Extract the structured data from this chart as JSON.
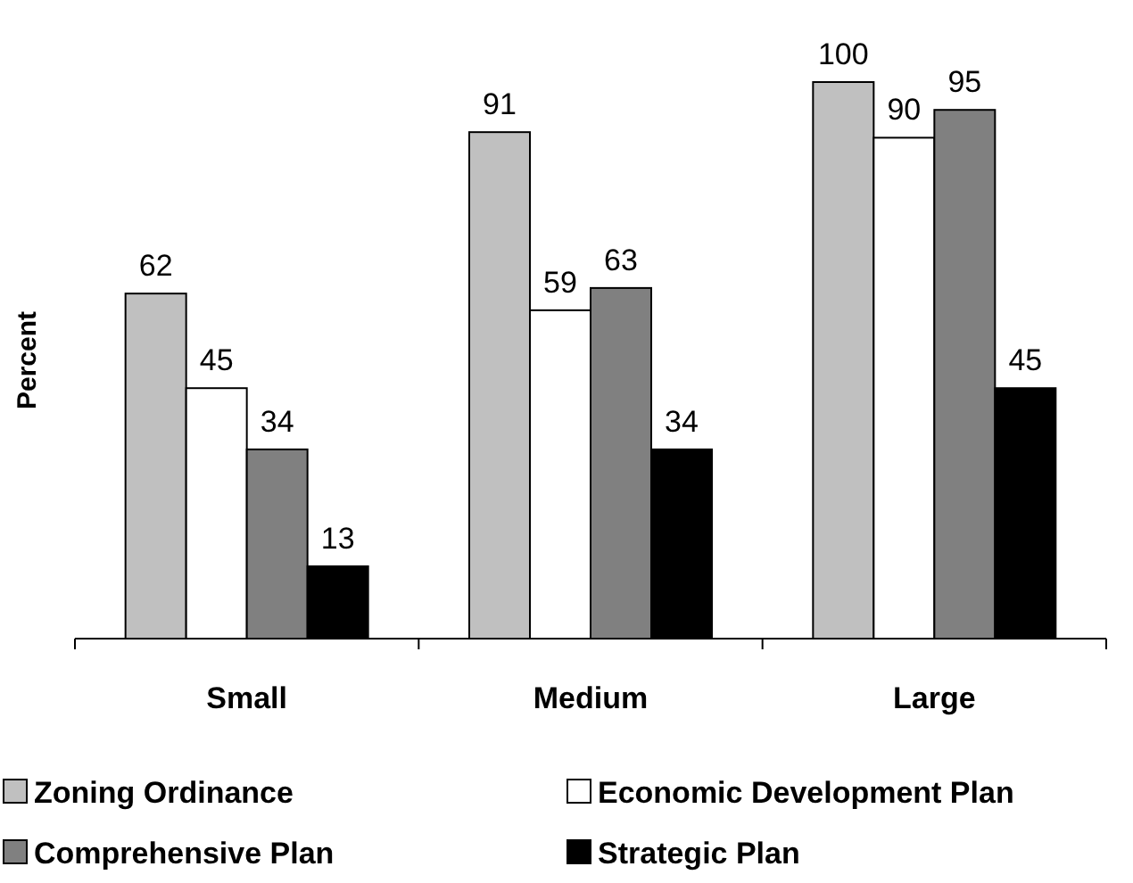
{
  "chart_data": {
    "type": "bar",
    "ylabel": "Percent",
    "categories": [
      "Small",
      "Medium",
      "Large"
    ],
    "series": [
      {
        "name": "Zoning Ordinance",
        "color": "#c0c0c0",
        "values": [
          62,
          91,
          100
        ]
      },
      {
        "name": "Economic Development Plan",
        "color": "#ffffff",
        "values": [
          45,
          59,
          90
        ]
      },
      {
        "name": "Comprehensive Plan",
        "color": "#808080",
        "values": [
          34,
          63,
          95
        ]
      },
      {
        "name": "Strategic Plan",
        "color": "#000000",
        "values": [
          13,
          34,
          45
        ]
      }
    ],
    "data_labels": true,
    "legend": "bottom"
  }
}
